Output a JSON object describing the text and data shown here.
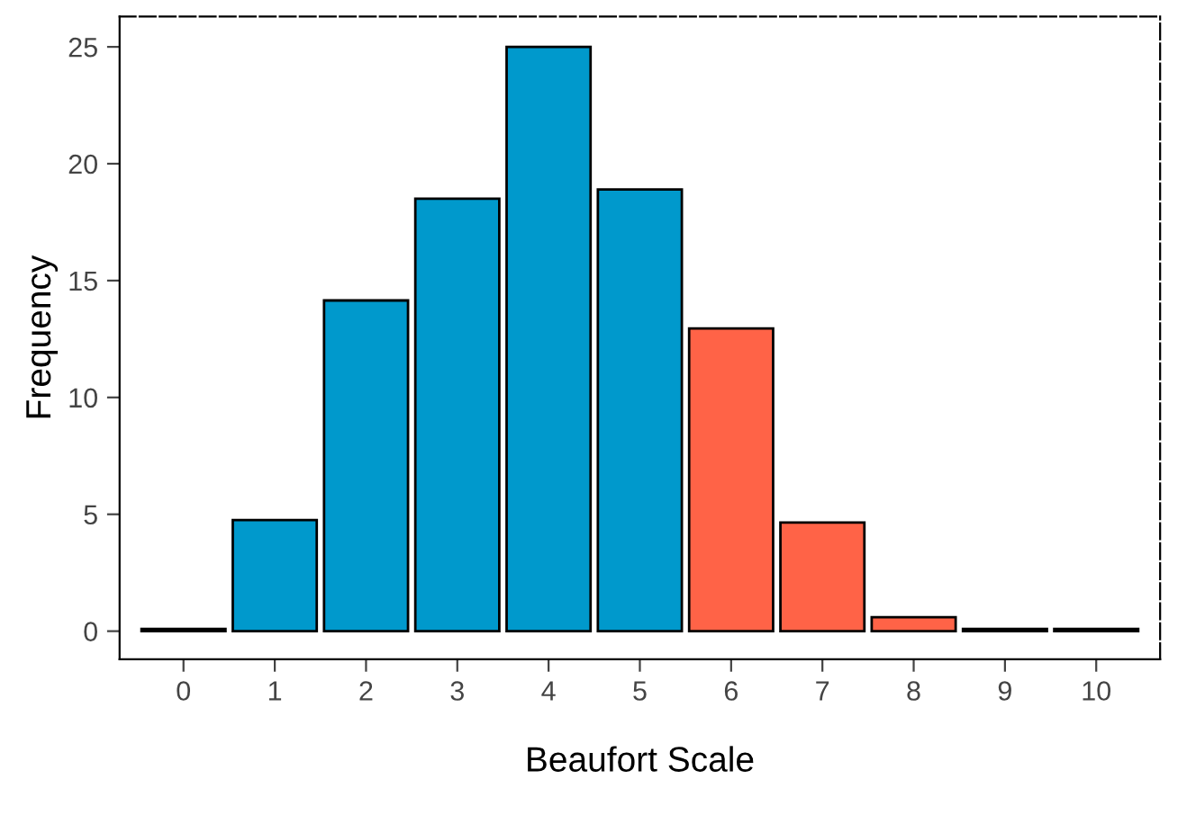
{
  "chart_data": {
    "type": "bar",
    "xlabel": "Beaufort Scale",
    "ylabel": "Frequency",
    "categories": [
      "0",
      "1",
      "2",
      "3",
      "4",
      "5",
      "6",
      "7",
      "8",
      "9",
      "10"
    ],
    "values": [
      0.1,
      4.75,
      14.15,
      18.5,
      25.0,
      18.9,
      12.95,
      4.65,
      0.6,
      0.1,
      0.1
    ],
    "colors": [
      "#0099cc",
      "#0099cc",
      "#0099cc",
      "#0099cc",
      "#0099cc",
      "#0099cc",
      "#ff6347",
      "#ff6347",
      "#ff6347",
      "#ff6347",
      "#ff6347"
    ],
    "ylim": [
      -1.2,
      26.3
    ],
    "yticks": [
      0,
      5,
      10,
      15,
      20,
      25
    ],
    "grid": false,
    "legend": false
  }
}
